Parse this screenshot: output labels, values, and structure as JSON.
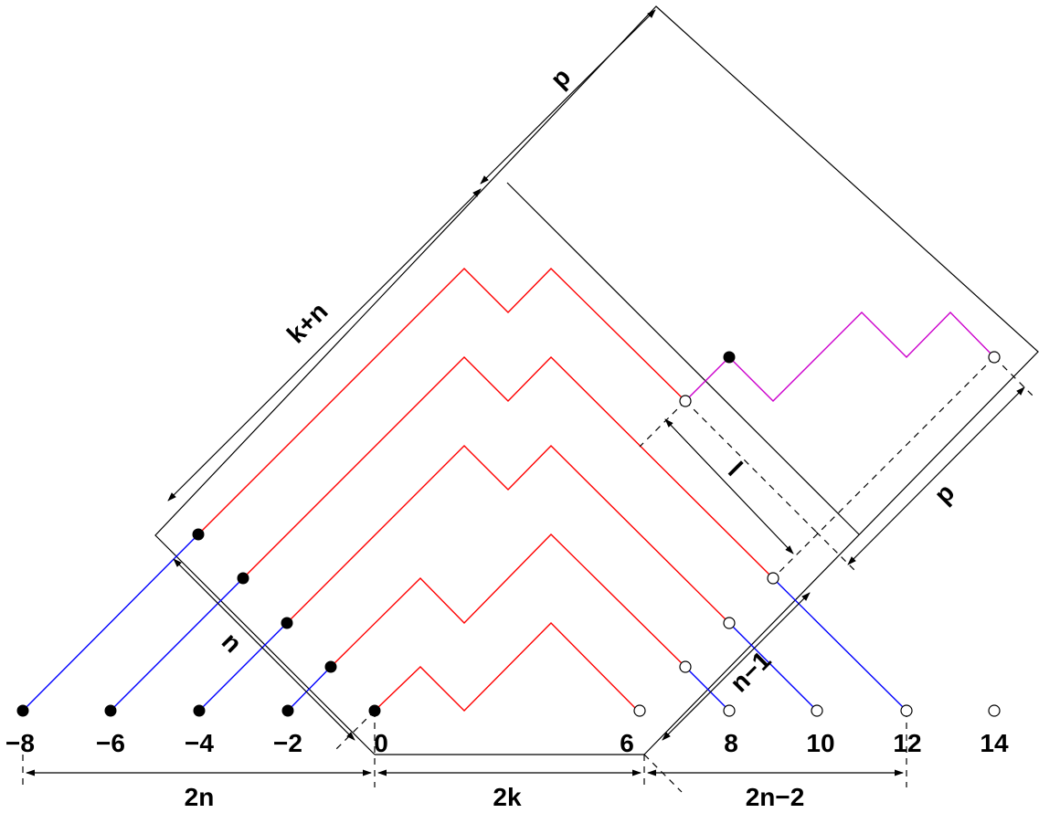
{
  "colors": {
    "red_path": "#ff0000",
    "blue_path": "#0000ff",
    "magenta_path": "#cc00cc",
    "black": "#000000",
    "background": "#ffffff"
  },
  "axis": {
    "tick_labels": [
      "−8",
      "−6",
      "−4",
      "−2",
      "0",
      "6",
      "8",
      "10",
      "12",
      "14"
    ]
  },
  "labels": {
    "bottom_left": "2n",
    "bottom_middle": "2k",
    "bottom_right": "2n−2",
    "upper_left_side": "k+n",
    "top_right_side": "p",
    "right_side": "p",
    "inner_l": "l",
    "left_n": "n",
    "right_n_minus_1": "n−1"
  }
}
